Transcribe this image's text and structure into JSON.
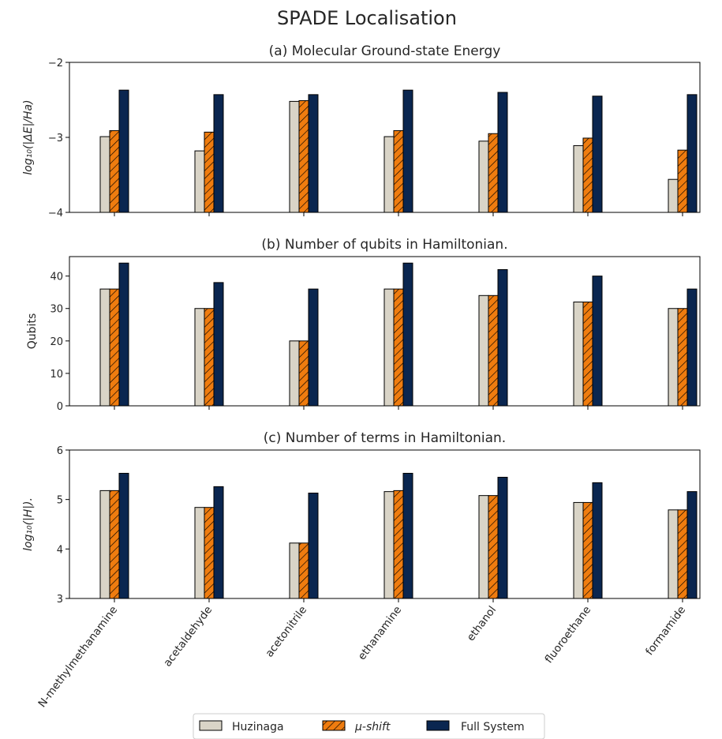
{
  "figure_title": "SPADE Localisation",
  "colors": {
    "huzinaga": "#d9d4c7",
    "mu_shift": "#ef7c0f",
    "full_system": "#0a2650",
    "edge": "#000000"
  },
  "legend": [
    "Huzinaga",
    "μ-shift",
    "Full System"
  ],
  "chart_data": [
    {
      "type": "bar",
      "title": "(a) Molecular Ground-state Energy",
      "ylabel": "log₁₀(|ΔE|/Ha)",
      "ylim": [
        -4,
        -2
      ],
      "yticks": [
        -2,
        -3,
        -4
      ],
      "ytick_labels": [
        "−2",
        "−3",
        "−4"
      ],
      "categories": [
        "N-methylmethanamine",
        "acetaldehyde",
        "acetonitrile",
        "ethanamine",
        "ethanol",
        "fluoroethane",
        "formamide"
      ],
      "series": [
        {
          "name": "Huzinaga",
          "values": [
            -2.99,
            -3.18,
            -2.52,
            -2.99,
            -3.05,
            -3.11,
            -3.56
          ]
        },
        {
          "name": "μ-shift",
          "values": [
            -2.91,
            -2.93,
            -2.51,
            -2.91,
            -2.95,
            -3.01,
            -3.17
          ]
        },
        {
          "name": "Full System",
          "values": [
            -2.37,
            -2.43,
            -2.43,
            -2.37,
            -2.4,
            -2.45,
            -2.43
          ]
        }
      ]
    },
    {
      "type": "bar",
      "title": "(b) Number of qubits in Hamiltonian.",
      "ylabel": "Qubits",
      "ylim": [
        0,
        46
      ],
      "yticks": [
        0,
        10,
        20,
        30,
        40
      ],
      "ytick_labels": [
        "0",
        "10",
        "20",
        "30",
        "40"
      ],
      "categories": [
        "N-methylmethanamine",
        "acetaldehyde",
        "acetonitrile",
        "ethanamine",
        "ethanol",
        "fluoroethane",
        "formamide"
      ],
      "series": [
        {
          "name": "Huzinaga",
          "values": [
            36,
            30,
            20,
            36,
            34,
            32,
            30
          ]
        },
        {
          "name": "μ-shift",
          "values": [
            36,
            30,
            20,
            36,
            34,
            32,
            30
          ]
        },
        {
          "name": "Full System",
          "values": [
            44,
            38,
            36,
            44,
            42,
            40,
            36
          ]
        }
      ]
    },
    {
      "type": "bar",
      "title": "(c) Number of terms in Hamiltonian.",
      "ylabel": "log₁₀(|H|).",
      "ylim": [
        3,
        6
      ],
      "yticks": [
        3,
        4,
        5,
        6
      ],
      "ytick_labels": [
        "3",
        "4",
        "5",
        "6"
      ],
      "categories": [
        "N-methylmethanamine",
        "acetaldehyde",
        "acetonitrile",
        "ethanamine",
        "ethanol",
        "fluoroethane",
        "formamide"
      ],
      "series": [
        {
          "name": "Huzinaga",
          "values": [
            5.18,
            4.84,
            4.12,
            5.16,
            5.08,
            4.94,
            4.79
          ]
        },
        {
          "name": "μ-shift",
          "values": [
            5.18,
            4.84,
            4.12,
            5.18,
            5.08,
            4.94,
            4.79
          ]
        },
        {
          "name": "Full System",
          "values": [
            5.53,
            5.26,
            5.13,
            5.53,
            5.45,
            5.34,
            5.16
          ]
        }
      ]
    }
  ]
}
